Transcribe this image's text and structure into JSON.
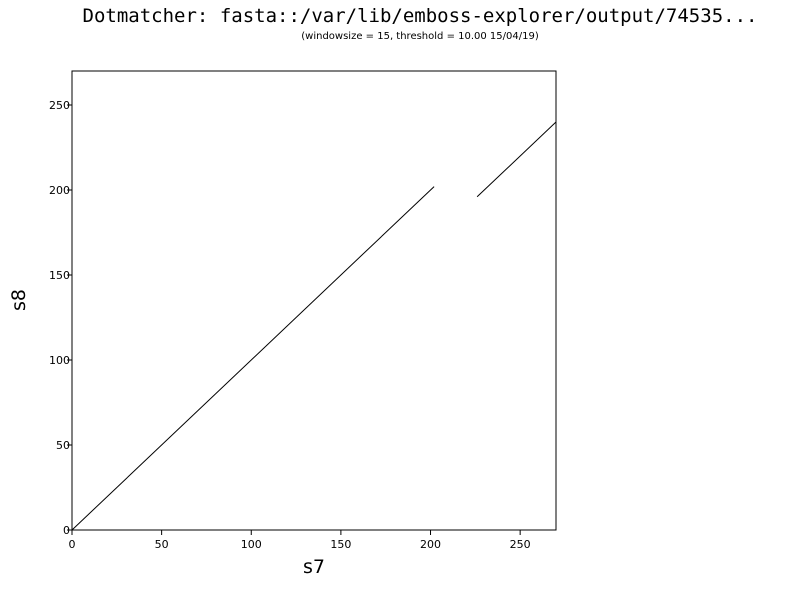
{
  "window": {
    "title": "Dotmatcher: fasta::/var/lib/emboss-explorer/output/74535...",
    "subtitle": "(windowsize = 15, threshold = 10.00  15/04/19)"
  },
  "chart_data": {
    "type": "line",
    "title": "Dotmatcher: fasta::/var/lib/emboss-explorer/output/74535...",
    "subtitle": "(windowsize = 15, threshold = 10.00  15/04/19)",
    "xlabel": "s7",
    "ylabel": "s8",
    "xlim": [
      0,
      270
    ],
    "ylim": [
      0,
      270
    ],
    "x_ticks": [
      "0",
      "50",
      "100",
      "150",
      "200",
      "250"
    ],
    "y_ticks": [
      "0",
      "50",
      "100",
      "150",
      "200",
      "250"
    ],
    "grid": false,
    "series": [
      {
        "x": [
          0,
          202
        ],
        "y": [
          0,
          202
        ]
      },
      {
        "x": [
          226,
          270
        ],
        "y": [
          196,
          240
        ]
      }
    ],
    "line_color": "#000000"
  }
}
